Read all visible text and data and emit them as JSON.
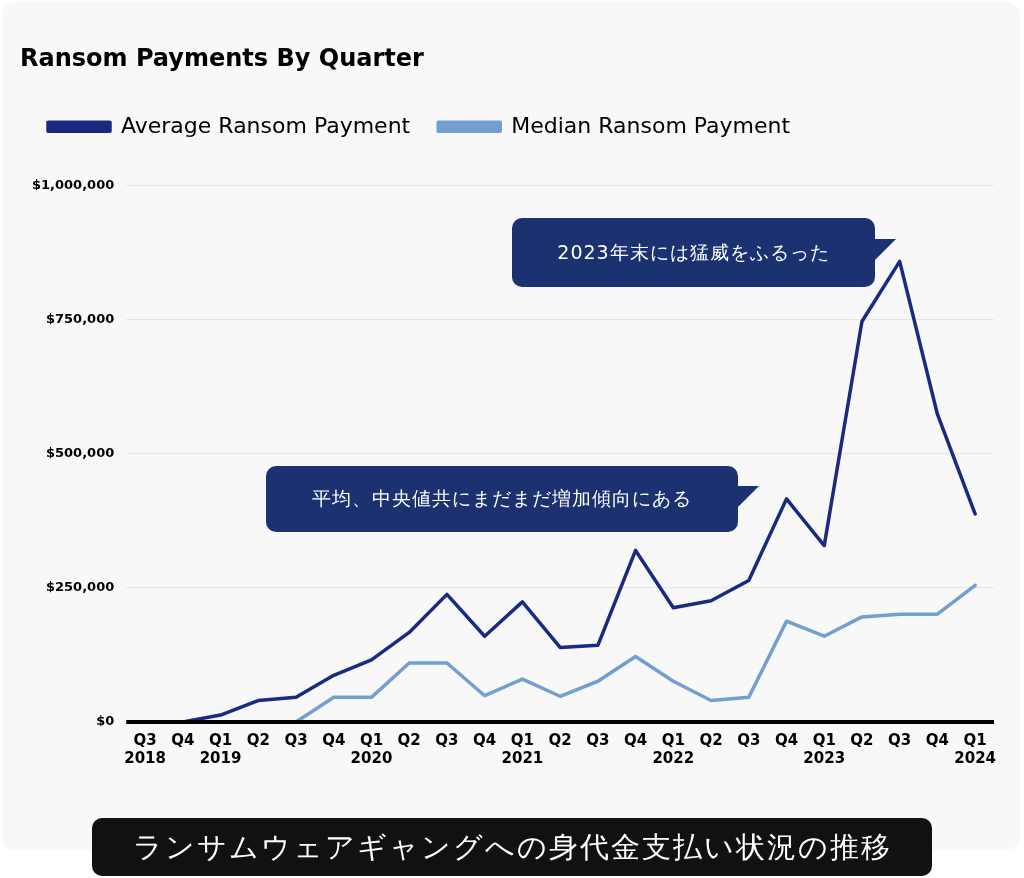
{
  "chart_data": {
    "type": "line",
    "title": "Ransom Payments By Quarter",
    "categories": [
      "Q3\n2018",
      "Q4",
      "Q1\n2019",
      "Q2",
      "Q3",
      "Q4",
      "Q1\n2020",
      "Q2",
      "Q3",
      "Q4",
      "Q1\n2021",
      "Q2",
      "Q3",
      "Q4",
      "Q1\n2022",
      "Q2",
      "Q3",
      "Q4",
      "Q1\n2023",
      "Q2",
      "Q3",
      "Q4",
      "Q1\n2024"
    ],
    "series": [
      {
        "name": "Average Ransom Payment",
        "color": "#1a2a80",
        "values": [
          0,
          0,
          13000,
          40000,
          46000,
          87000,
          116000,
          167000,
          238000,
          160000,
          224000,
          139000,
          143000,
          320000,
          213000,
          226000,
          264000,
          416000,
          329000,
          747000,
          859000,
          574000,
          388000
        ]
      },
      {
        "name": "Median Ransom Payment",
        "color": "#729fcf",
        "values": [
          null,
          null,
          null,
          null,
          0,
          46000,
          46000,
          110000,
          110000,
          49000,
          80000,
          48000,
          76000,
          122000,
          76000,
          40000,
          46000,
          188000,
          160000,
          196000,
          201000,
          201000,
          255000
        ]
      }
    ],
    "ylim": [
      0,
      1000000
    ],
    "yticks": [
      {
        "value": 0,
        "label": "$0"
      },
      {
        "value": 250000,
        "label": "$250,000"
      },
      {
        "value": 500000,
        "label": "$500,000"
      },
      {
        "value": 750000,
        "label": "$750,000"
      },
      {
        "value": 1000000,
        "label": "$1,000,000"
      }
    ],
    "grid": "y",
    "legend": "top left",
    "marker": "none",
    "line_style": "solid",
    "annotations": [
      "2023年末には猛威をふるった",
      "平均、中央値共にまだまだ増加傾向にある",
      "ランサムウェアギャングへの身代金支払い状況の推移"
    ]
  }
}
